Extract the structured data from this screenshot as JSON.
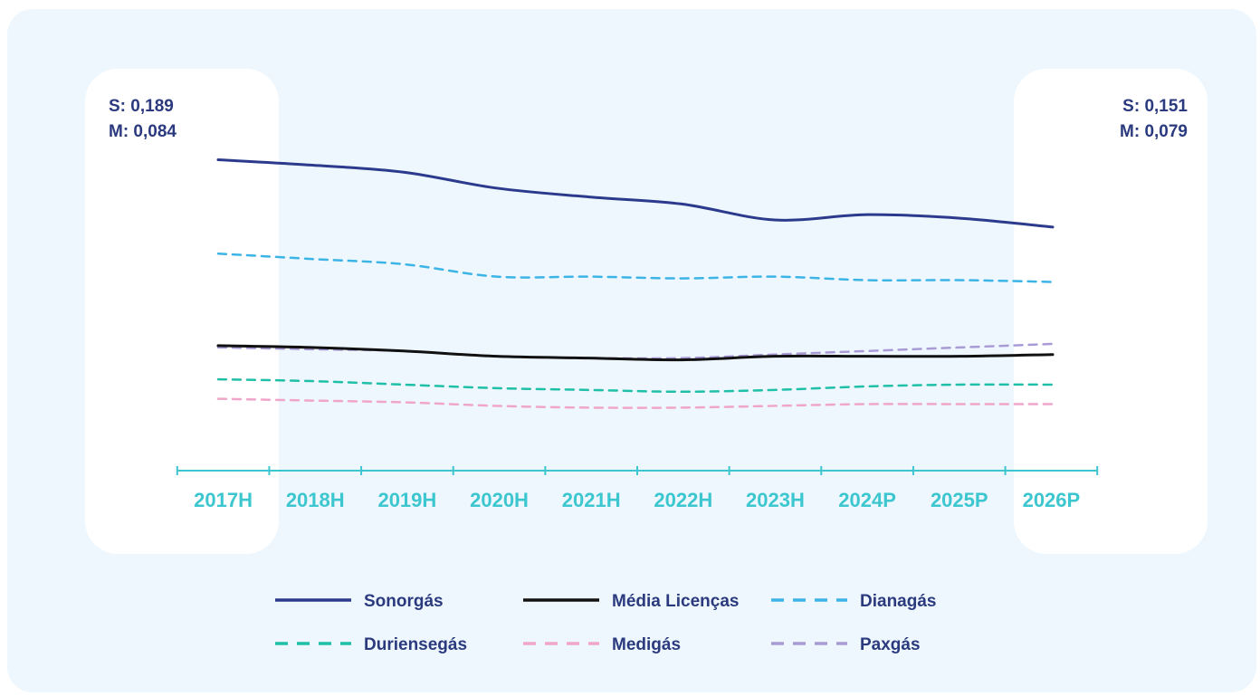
{
  "chart_data": {
    "type": "line",
    "title": "",
    "xlabel": "",
    "ylabel": "",
    "categories": [
      "2017H",
      "2018H",
      "2019H",
      "2020H",
      "2021H",
      "2022H",
      "2023H",
      "2024P",
      "2025P",
      "2026P"
    ],
    "ylim": [
      0.04,
      0.2
    ],
    "grid": false,
    "legend_position": "bottom",
    "annotations": {
      "left": [
        "S: 0,189",
        "M: 0,084"
      ],
      "right": [
        "S: 0,151",
        "M: 0,079"
      ]
    },
    "series": [
      {
        "name": "Sonorgás",
        "color": "#2b3a8c",
        "dash": "solid",
        "values": [
          0.189,
          0.186,
          0.182,
          0.173,
          0.168,
          0.164,
          0.155,
          0.158,
          0.156,
          0.151
        ]
      },
      {
        "name": "Média Licenças",
        "color": "#111111",
        "dash": "solid",
        "values": [
          0.084,
          0.083,
          0.081,
          0.078,
          0.077,
          0.076,
          0.078,
          0.078,
          0.078,
          0.079
        ]
      },
      {
        "name": "Dianagás",
        "color": "#3cb4e6",
        "dash": "dashed",
        "values": [
          0.136,
          0.133,
          0.13,
          0.123,
          0.123,
          0.122,
          0.123,
          0.121,
          0.121,
          0.12
        ]
      },
      {
        "name": "Duriensegás",
        "color": "#1fbfa8",
        "dash": "dashed",
        "values": [
          0.065,
          0.064,
          0.062,
          0.06,
          0.059,
          0.058,
          0.059,
          0.061,
          0.062,
          0.062
        ]
      },
      {
        "name": "Medigás",
        "color": "#f0a6c8",
        "dash": "dashed",
        "values": [
          0.054,
          0.053,
          0.052,
          0.05,
          0.049,
          0.049,
          0.05,
          0.051,
          0.051,
          0.051
        ]
      },
      {
        "name": "Paxgás",
        "color": "#a99bd6",
        "dash": "dashed",
        "values": [
          0.083,
          0.082,
          0.081,
          0.078,
          0.077,
          0.077,
          0.079,
          0.081,
          0.083,
          0.085
        ]
      }
    ]
  }
}
